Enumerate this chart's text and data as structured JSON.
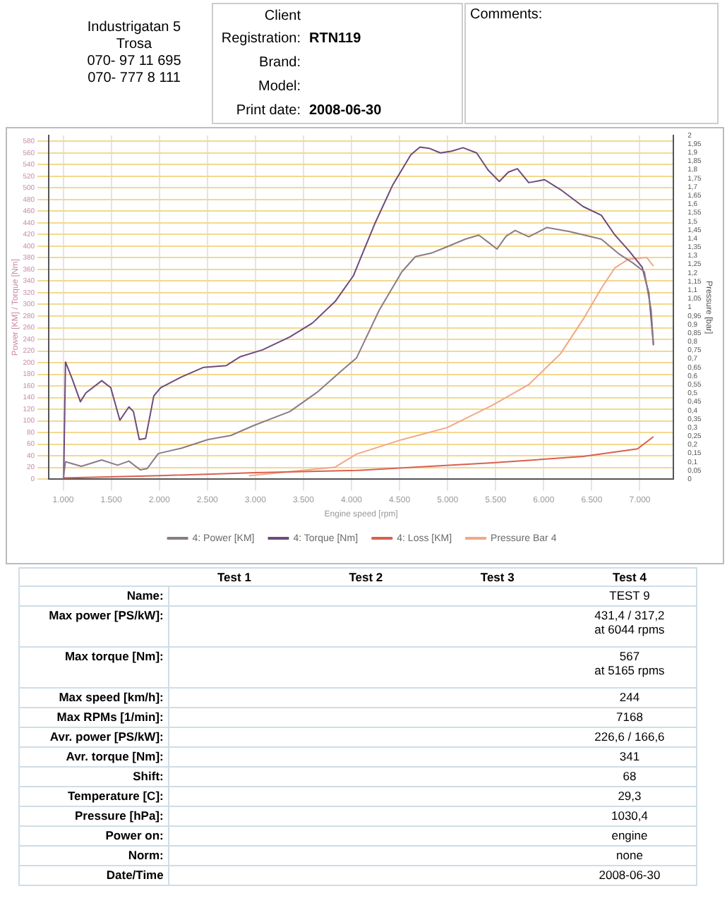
{
  "chart_data": [
    {
      "type": "other",
      "annotations": [
        "Industrigatan 5",
        "Trosa",
        "070- 97 11 695",
        "070- 777 8 111",
        "Client",
        "Registration:",
        "RTN119",
        "Brand:",
        null,
        "Model:",
        null,
        "Print date:",
        "2008-06-30",
        "Comments:"
      ]
    },
    {
      "type": "line",
      "xlabel": "Engine speed [rpm]",
      "ylabel": "Power [KM] / Torque [Nm]",
      "y2label": "Pressure [bar]",
      "marker": "none",
      "line_style": "solid",
      "grid": true,
      "legend": "bottom",
      "xlim": [
        850,
        7350
      ],
      "xticks": [
        {
          "value": 1000,
          "label": "1.000"
        },
        {
          "value": 1500,
          "label": "1.500"
        },
        {
          "value": 2000,
          "label": "2.000"
        },
        {
          "value": 2500,
          "label": "2.500"
        },
        {
          "value": 3000,
          "label": "3.000"
        },
        {
          "value": 3500,
          "label": "3.500"
        },
        {
          "value": 4000,
          "label": "4.000"
        },
        {
          "value": 4500,
          "label": "4.500"
        },
        {
          "value": 5000,
          "label": "5.000"
        },
        {
          "value": 5500,
          "label": "5.500"
        },
        {
          "value": 6000,
          "label": "6.000"
        },
        {
          "value": 6500,
          "label": "6.500"
        },
        {
          "value": 7000,
          "label": "7.000"
        }
      ],
      "ylim": [
        0,
        590
      ],
      "yticks": [
        0,
        20,
        40,
        60,
        80,
        100,
        120,
        140,
        160,
        180,
        200,
        220,
        240,
        260,
        280,
        300,
        320,
        340,
        360,
        380,
        400,
        420,
        440,
        460,
        480,
        500,
        520,
        540,
        560,
        580
      ],
      "y2lim": [
        0,
        2
      ],
      "y2ticks": [
        0,
        {
          "value": 0.05,
          "label": "0,05"
        },
        {
          "value": 0.1,
          "label": "0,1"
        },
        {
          "value": 0.15,
          "label": "0,15"
        },
        {
          "value": 0.2,
          "label": "0,2"
        },
        {
          "value": 0.25,
          "label": "0,25"
        },
        {
          "value": 0.3,
          "label": "0,3"
        },
        {
          "value": 0.35,
          "label": "0,35"
        },
        {
          "value": 0.4,
          "label": "0,4"
        },
        {
          "value": 0.45,
          "label": "0,45"
        },
        {
          "value": 0.5,
          "label": "0,5"
        },
        {
          "value": 0.55,
          "label": "0,55"
        },
        {
          "value": 0.6,
          "label": "0,6"
        },
        {
          "value": 0.65,
          "label": "0,65"
        },
        {
          "value": 0.7,
          "label": "0,7"
        },
        {
          "value": 0.75,
          "label": "0,75"
        },
        {
          "value": 0.8,
          "label": "0,8"
        },
        {
          "value": 0.85,
          "label": "0,85"
        },
        {
          "value": 0.9,
          "label": "0,9"
        },
        {
          "value": 0.95,
          "label": "0,95"
        },
        1,
        {
          "value": 1.05,
          "label": "1,05"
        },
        {
          "value": 1.1,
          "label": "1,1"
        },
        {
          "value": 1.15,
          "label": "1,15"
        },
        {
          "value": 1.2,
          "label": "1,2"
        },
        {
          "value": 1.25,
          "label": "1,25"
        },
        {
          "value": 1.3,
          "label": "1,3"
        },
        {
          "value": 1.35,
          "label": "1,35"
        },
        {
          "value": 1.4,
          "label": "1,4"
        },
        {
          "value": 1.45,
          "label": "1,45"
        },
        {
          "value": 1.5,
          "label": "1,5"
        },
        {
          "value": 1.55,
          "label": "1,55"
        },
        {
          "value": 1.6,
          "label": "1,6"
        },
        {
          "value": 1.65,
          "label": "1,65"
        },
        {
          "value": 1.7,
          "label": "1,7"
        },
        {
          "value": 1.75,
          "label": "1,75"
        },
        {
          "value": 1.8,
          "label": "1,8"
        },
        {
          "value": 1.85,
          "label": "1,85"
        },
        {
          "value": 1.9,
          "label": "1,9"
        },
        {
          "value": 1.95,
          "label": "1,95"
        },
        2
      ],
      "series": [
        {
          "name": "4: Power [KM]",
          "color": "#8c7a88",
          "x": [
            1000,
            1024,
            1189,
            1401,
            1566,
            1684,
            1802,
            1873,
            1990,
            2226,
            2509,
            2745,
            2981,
            3358,
            3641,
            3924,
            4052,
            4288,
            4524,
            4665,
            4830,
            4995,
            5184,
            5325,
            5420,
            5514,
            5608,
            5703,
            5844,
            6033,
            6269,
            6599,
            6788,
            6929,
            7047,
            7118,
            7142
          ],
          "values": [
            0,
            30,
            22,
            33,
            24,
            31,
            16,
            18,
            44,
            53,
            68,
            75,
            92,
            116,
            149,
            190,
            208,
            290,
            356,
            382,
            388,
            399,
            412,
            419,
            407,
            395,
            417,
            427,
            416,
            432,
            425,
            412,
            386,
            371,
            356,
            290,
            230
          ]
        },
        {
          "name": "4: Torque [Nm]",
          "color": "#6e4a7e",
          "x": [
            1005,
            1024,
            1094,
            1179,
            1236,
            1401,
            1495,
            1590,
            1684,
            1731,
            1792,
            1858,
            1943,
            2014,
            2226,
            2462,
            2698,
            2840,
            3075,
            3358,
            3594,
            3830,
            4019,
            4241,
            4429,
            4618,
            4712,
            4807,
            4925,
            5042,
            5160,
            5302,
            5420,
            5538,
            5632,
            5726,
            5844,
            6009,
            6175,
            6410,
            6599,
            6741,
            6882,
            7024,
            7094,
            7142
          ],
          "values": [
            0,
            201,
            172,
            133,
            148,
            169,
            157,
            101,
            124,
            116,
            68,
            70,
            143,
            157,
            175,
            192,
            195,
            210,
            222,
            244,
            268,
            305,
            349,
            438,
            505,
            557,
            570,
            568,
            560,
            563,
            569,
            560,
            531,
            511,
            527,
            533,
            509,
            514,
            497,
            468,
            453,
            419,
            393,
            364,
            319,
            230
          ]
        },
        {
          "name": "4: Loss [KM]",
          "color": "#d9604f",
          "x": [
            1000,
            2000,
            3000,
            4052,
            5467,
            6410,
            6976,
            7142
          ],
          "values": [
            2,
            6,
            11,
            15,
            28,
            39,
            52,
            73
          ]
        },
        {
          "name": "Pressure Bar 4",
          "color": "#f2a882",
          "axis": "y2",
          "x": [
            2934,
            3830,
            4052,
            4524,
            4995,
            5467,
            5844,
            6175,
            6410,
            6599,
            6741,
            6882,
            7071,
            7142
          ],
          "values": [
            0.02,
            0.07,
            0.146,
            0.23,
            0.3,
            0.43,
            0.55,
            0.73,
            0.93,
            1.11,
            1.23,
            1.28,
            1.29,
            1.24
          ]
        }
      ]
    },
    {
      "type": "other",
      "annotations": [
        "Test 1",
        "Test 2",
        "Test 3",
        "Test 4",
        "Name:",
        "TEST 9",
        "Max power [PS/kW]:",
        "431,4 / 317,2\nat 6044 rpms",
        "Max torque [Nm]:",
        "567\nat 5165 rpms",
        "Max speed [km/h]:",
        "244",
        "Max RPMs [1/min]:",
        "7168",
        "Avr. power [PS/kW]:",
        "226,6 / 166,6",
        "Avr. torque [Nm]:",
        "341",
        "Shift:",
        "68",
        "Temperature [C]:",
        "29,3",
        "Pressure [hPa]:",
        "1030,4",
        "Power on:",
        "engine",
        "Norm:",
        "none",
        "Date/Time",
        "2008-06-30"
      ]
    }
  ]
}
